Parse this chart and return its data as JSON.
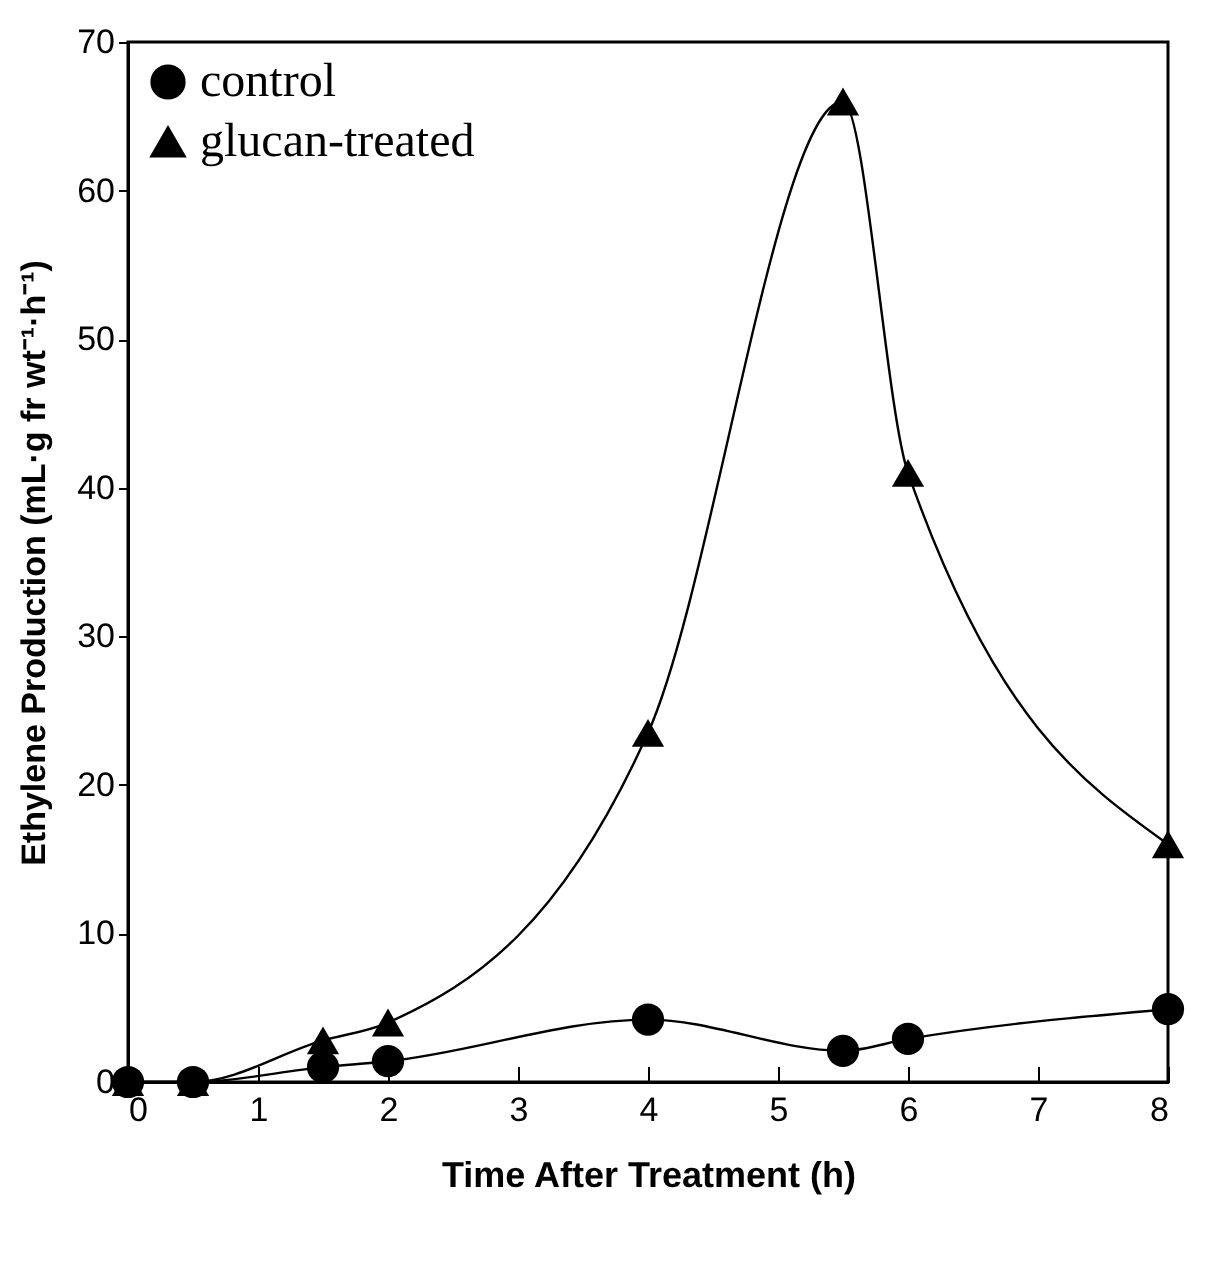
{
  "chart_data": {
    "type": "line",
    "xlabel": "Time After Treatment (h)",
    "ylabel": "Ethylene Production (mL·g fr wt⁻¹·h⁻¹)",
    "xlim": [
      0,
      8
    ],
    "xticks": [
      0,
      1,
      2,
      3,
      4,
      5,
      6,
      7,
      8
    ],
    "ylim": [
      0,
      70
    ],
    "yticks": [
      0,
      10,
      20,
      30,
      40,
      50,
      60,
      70
    ],
    "grid": false,
    "legend": "top left",
    "series": [
      {
        "name": "control",
        "color": "#000000",
        "marker": "circle",
        "x": [
          0,
          0.5,
          1.5,
          2,
          4,
          5.5,
          6,
          8
        ],
        "values": [
          0,
          0,
          1.0,
          1.4,
          4.2,
          2.1,
          2.9,
          4.9
        ]
      },
      {
        "name": "glucan-treated",
        "color": "#000000",
        "marker": "triangle",
        "x": [
          0,
          0.5,
          1.5,
          2,
          4,
          5.5,
          6,
          8
        ],
        "values": [
          0,
          0,
          2.8,
          4,
          23.5,
          66,
          41,
          16
        ]
      }
    ]
  }
}
